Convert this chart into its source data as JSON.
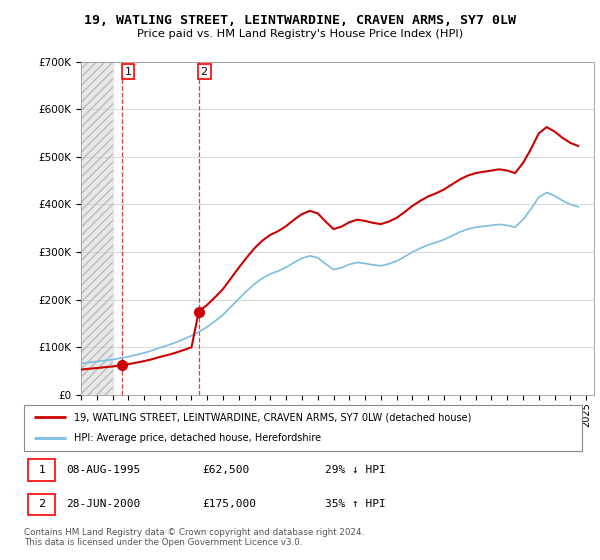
{
  "title": "19, WATLING STREET, LEINTWARDINE, CRAVEN ARMS, SY7 0LW",
  "subtitle": "Price paid vs. HM Land Registry's House Price Index (HPI)",
  "legend_entry1": "19, WATLING STREET, LEINTWARDINE, CRAVEN ARMS, SY7 0LW (detached house)",
  "legend_entry2": "HPI: Average price, detached house, Herefordshire",
  "sale1_label": "1",
  "sale1_date_str": "08-AUG-1995",
  "sale1_price": 62500,
  "sale1_hpi_text": "29% ↓ HPI",
  "sale2_label": "2",
  "sale2_date_str": "28-JUN-2000",
  "sale2_price": 175000,
  "sale2_hpi_text": "35% ↑ HPI",
  "footer": "Contains HM Land Registry data © Crown copyright and database right 2024.\nThis data is licensed under the Open Government Licence v3.0.",
  "hpi_color": "#7abde0",
  "price_color": "#cc0000",
  "ylim_min": 0,
  "ylim_max": 700000,
  "background_color": "#ffffff",
  "hpi_years": [
    1993,
    1993.5,
    1994,
    1994.5,
    1995,
    1995.5,
    1996,
    1996.5,
    1997,
    1997.5,
    1998,
    1998.5,
    1999,
    1999.5,
    2000,
    2000.5,
    2001,
    2001.5,
    2002,
    2002.5,
    2003,
    2003.5,
    2004,
    2004.5,
    2005,
    2005.5,
    2006,
    2006.5,
    2007,
    2007.5,
    2008,
    2008.5,
    2009,
    2009.5,
    2010,
    2010.5,
    2011,
    2011.5,
    2012,
    2012.5,
    2013,
    2013.5,
    2014,
    2014.5,
    2015,
    2015.5,
    2016,
    2016.5,
    2017,
    2017.5,
    2018,
    2018.5,
    2019,
    2019.5,
    2020,
    2020.5,
    2021,
    2021.5,
    2022,
    2022.5,
    2023,
    2023.5,
    2024,
    2024.5
  ],
  "hpi_values": [
    66000,
    68000,
    70000,
    72000,
    74000,
    77000,
    80000,
    84000,
    88000,
    93000,
    99000,
    104000,
    110000,
    117000,
    124000,
    133000,
    143000,
    155000,
    168000,
    185000,
    202000,
    218000,
    233000,
    245000,
    254000,
    260000,
    268000,
    278000,
    287000,
    292000,
    288000,
    275000,
    263000,
    267000,
    274000,
    278000,
    276000,
    273000,
    271000,
    275000,
    281000,
    290000,
    300000,
    308000,
    315000,
    320000,
    326000,
    334000,
    342000,
    348000,
    352000,
    354000,
    356000,
    358000,
    356000,
    352000,
    368000,
    390000,
    415000,
    425000,
    418000,
    408000,
    400000,
    395000
  ]
}
